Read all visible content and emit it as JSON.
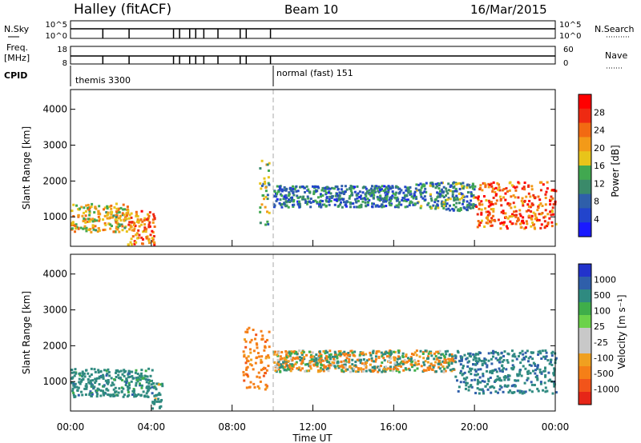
{
  "header": {
    "station": "Halley (fitACF)",
    "beam": "Beam 10",
    "date": "16/Mar/2015"
  },
  "top_panels": {
    "nsky_label": "N.Sky",
    "nsky_ticks": [
      "10^5",
      "10^0"
    ],
    "nsearch_label": "N.Search",
    "nsearch_ticks": [
      "10^5",
      "10^0"
    ],
    "freq_label": "Freq.",
    "freq_unit": "[MHz]",
    "freq_ticks": [
      "18",
      "8"
    ],
    "nave_label": "Nave",
    "nave_ticks": [
      "60",
      "0"
    ],
    "cpid_label": "CPID",
    "cpid_segments": [
      "themis 3300",
      "normal (fast) 151"
    ]
  },
  "x_axis": {
    "label": "Time UT",
    "ticks": [
      "00:00",
      "04:00",
      "08:00",
      "12:00",
      "16:00",
      "20:00",
      "00:00"
    ]
  },
  "colors": {
    "power_scale": [
      "#1a1aff",
      "#2244cc",
      "#2f5faa",
      "#3a8a6a",
      "#41a850",
      "#e8c41a",
      "#f39a18",
      "#f26a12",
      "#ee2a12",
      "#ff0000"
    ],
    "velocity_scale": [
      "#2233cc",
      "#2f5faa",
      "#2f8a80",
      "#3fae4a",
      "#6cd24a",
      "#c8c8c8",
      "#c8c8c8",
      "#f0a020",
      "#f57f17",
      "#f2541a",
      "#e62618"
    ]
  },
  "chart_data": [
    {
      "type": "heatmap",
      "title": "Power",
      "ylabel": "Slant Range [km]",
      "xlabel": "",
      "xlim": [
        "00:00",
        "24:00"
      ],
      "ylim": [
        180,
        4550
      ],
      "yticks": [
        1000,
        2000,
        3000,
        4000
      ],
      "colorbar_label": "Power [dB]",
      "colorbar_ticks": [
        "28",
        "24",
        "20",
        "16",
        "12",
        "8",
        "4"
      ],
      "features": [
        {
          "time_range": [
            0.0,
            2.8
          ],
          "range_km": [
            600,
            1400
          ],
          "level_db": 18
        },
        {
          "time_range": [
            2.8,
            4.2
          ],
          "range_km": [
            250,
            1200
          ],
          "level_db": 22
        },
        {
          "time_range": [
            9.3,
            9.8
          ],
          "range_km": [
            800,
            2600
          ],
          "level_db": 14
        },
        {
          "time_range": [
            10.0,
            17.0
          ],
          "range_km": [
            1300,
            1900
          ],
          "level_db": 8
        },
        {
          "time_range": [
            17.0,
            20.0
          ],
          "range_km": [
            1200,
            2000
          ],
          "level_db": 10
        },
        {
          "time_range": [
            20.0,
            24.0
          ],
          "range_km": [
            700,
            2000
          ],
          "level_db": 24
        }
      ]
    },
    {
      "type": "heatmap",
      "title": "Velocity",
      "ylabel": "Slant Range [km]",
      "xlabel": "Time UT",
      "xlim": [
        "00:00",
        "24:00"
      ],
      "ylim": [
        180,
        4550
      ],
      "yticks": [
        1000,
        2000,
        3000,
        4000
      ],
      "colorbar_label": "Velocity [m s⁻¹]",
      "colorbar_ticks": [
        "1000",
        "500",
        "100",
        "25",
        "-25",
        "-100",
        "-500",
        "-1000"
      ],
      "features": [
        {
          "time_range": [
            0.0,
            4.0
          ],
          "range_km": [
            600,
            1400
          ],
          "velocity": 300
        },
        {
          "time_range": [
            4.0,
            4.5
          ],
          "range_km": [
            250,
            1000
          ],
          "velocity": 200
        },
        {
          "time_range": [
            8.5,
            9.8
          ],
          "range_km": [
            800,
            2600
          ],
          "velocity": -300
        },
        {
          "time_range": [
            10.0,
            19.0
          ],
          "range_km": [
            1300,
            1900
          ],
          "velocity": 0
        },
        {
          "time_range": [
            19.0,
            24.0
          ],
          "range_km": [
            700,
            1900
          ],
          "velocity": 400
        }
      ]
    }
  ]
}
